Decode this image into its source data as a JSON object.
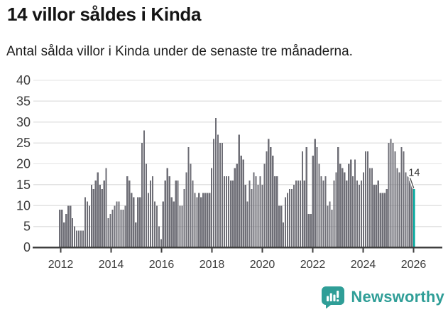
{
  "header": {
    "title": "14 villor såldes i Kinda",
    "subtitle": "Antal sålda villor i Kinda under de senaste tre månaderna."
  },
  "chart_data": {
    "type": "bar",
    "description": "Rolling three-month count of houses sold per month",
    "x_start": "2012-01",
    "x_end": "2026-01",
    "values": [
      9,
      9,
      6,
      8,
      10,
      10,
      7,
      5,
      4,
      4,
      4,
      4,
      12,
      11,
      10,
      15,
      14,
      16,
      18,
      15,
      14,
      16,
      19,
      7,
      8,
      9,
      10,
      11,
      11,
      9,
      9,
      10,
      17,
      16,
      13,
      12,
      6,
      12,
      12,
      25,
      28,
      20,
      13,
      16,
      17,
      11,
      10,
      5,
      2,
      11,
      16,
      19,
      17,
      12,
      11,
      16,
      16,
      10,
      10,
      14,
      18,
      24,
      20,
      16,
      13,
      12,
      13,
      12,
      13,
      13,
      13,
      13,
      19,
      26,
      31,
      27,
      25,
      25,
      17,
      17,
      17,
      16,
      16,
      19,
      20,
      27,
      22,
      21,
      15,
      11,
      16,
      14,
      18,
      17,
      15,
      17,
      15,
      20,
      23,
      26,
      24,
      22,
      17,
      17,
      10,
      10,
      6,
      12,
      13,
      14,
      14,
      15,
      16,
      16,
      16,
      23,
      16,
      24,
      8,
      8,
      22,
      26,
      24,
      20,
      17,
      16,
      17,
      10,
      11,
      9,
      16,
      18,
      24,
      20,
      19,
      18,
      16,
      20,
      21,
      17,
      21,
      16,
      15,
      16,
      18,
      23,
      23,
      19,
      19,
      15,
      15,
      16,
      13,
      13,
      13,
      14,
      25,
      26,
      25,
      23,
      19,
      18,
      24,
      23,
      18,
      17,
      16,
      15,
      14
    ],
    "highlight": {
      "index": 168,
      "label": "14",
      "value": 14
    },
    "yticks": [
      0,
      5,
      10,
      15,
      20,
      25,
      30,
      35,
      40
    ],
    "xticks": [
      "2012",
      "2014",
      "2016",
      "2018",
      "2020",
      "2022",
      "2024",
      "2026"
    ],
    "ylim": [
      0,
      40
    ],
    "grid": true,
    "legend": null,
    "colors": {
      "bar": "#6e6e76",
      "highlight": "#00a79c",
      "gridline": "#e3e3e3",
      "axis": "#3f3f3f",
      "tick_label": "#3d3d3d",
      "annotation_text": "#333333"
    }
  },
  "footer": {
    "brand": "Newsworthy",
    "brand_color": "#2f9e97"
  }
}
